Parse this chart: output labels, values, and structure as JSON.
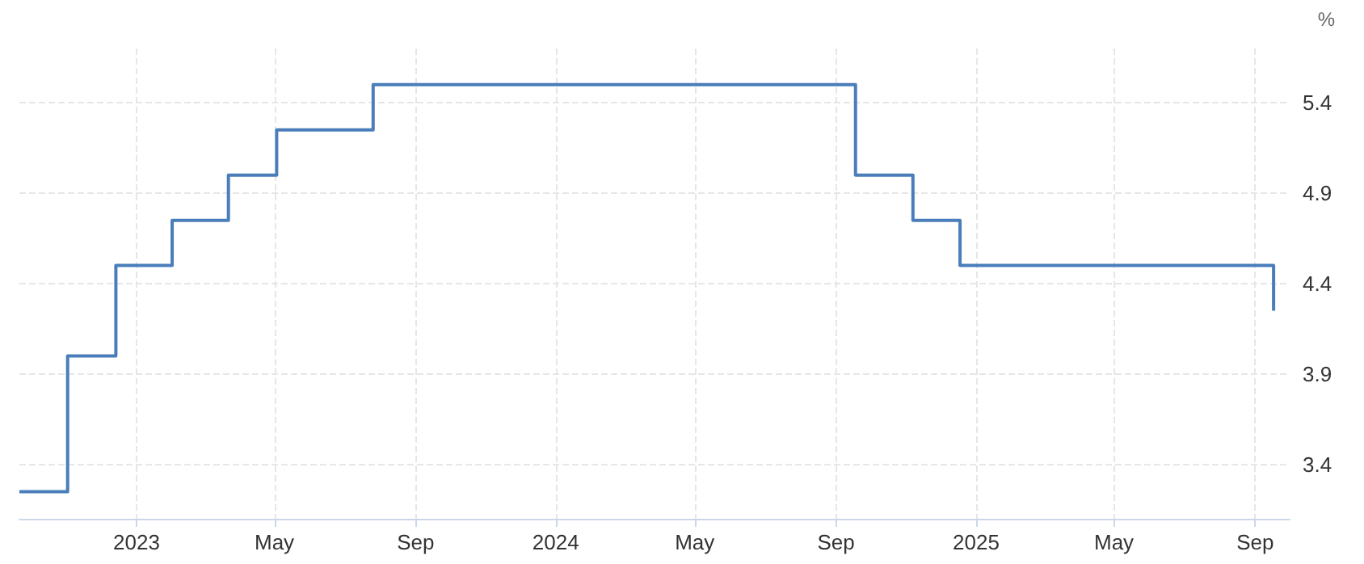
{
  "chart_data": {
    "type": "step",
    "ylabel": "%",
    "x": [
      "2022-09-21",
      "2022-11-02",
      "2022-12-14",
      "2023-02-01",
      "2023-03-22",
      "2023-05-03",
      "2023-07-26",
      "2024-09-18",
      "2024-11-07",
      "2024-12-18",
      "2025-09-17"
    ],
    "series": [
      {
        "color": "#4a7ebb",
        "values": [
          3.25,
          4.0,
          4.5,
          4.75,
          5.0,
          5.25,
          5.5,
          5.0,
          4.75,
          4.5,
          4.25
        ]
      }
    ],
    "xlim": [
      "2022-09-21",
      "2025-10-01"
    ],
    "xticks": [
      {
        "value": "2023-01-01",
        "label": "2023"
      },
      {
        "value": "2023-05-01",
        "label": "May"
      },
      {
        "value": "2023-09-01",
        "label": "Sep"
      },
      {
        "value": "2024-01-01",
        "label": "2024"
      },
      {
        "value": "2024-05-01",
        "label": "May"
      },
      {
        "value": "2024-09-01",
        "label": "Sep"
      },
      {
        "value": "2025-01-01",
        "label": "2025"
      },
      {
        "value": "2025-05-01",
        "label": "May"
      },
      {
        "value": "2025-09-01",
        "label": "Sep"
      }
    ],
    "ylim": [
      3.1,
      5.7
    ],
    "yticks": [
      3.4,
      3.9,
      4.4,
      4.9,
      5.4
    ],
    "grid": true,
    "marker": "none",
    "line_style": "solid"
  }
}
